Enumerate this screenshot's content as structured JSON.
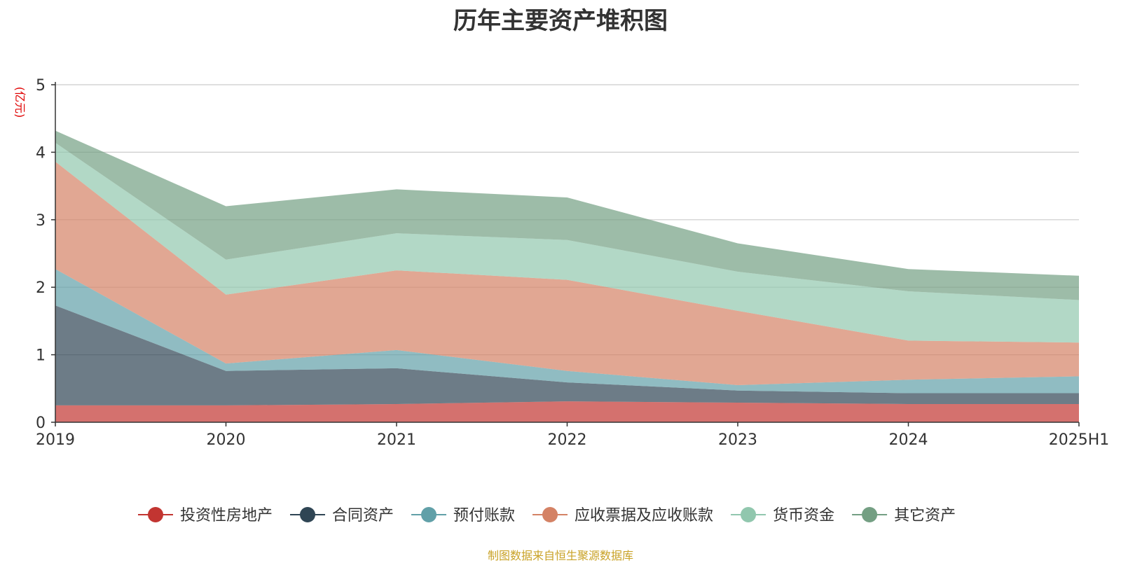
{
  "chart_data": {
    "type": "area",
    "title": "历年主要资产堆积图",
    "ylabel": "(亿元)",
    "ylim": [
      0,
      5
    ],
    "yticks": [
      0,
      1,
      2,
      3,
      4,
      5
    ],
    "categories": [
      "2019",
      "2020",
      "2021",
      "2022",
      "2023",
      "2024",
      "2025H1"
    ],
    "stacked": true,
    "grid": true,
    "legend_position": "bottom",
    "series": [
      {
        "name": "投资性房地产",
        "color": "#c23531",
        "values": [
          0.25,
          0.25,
          0.27,
          0.31,
          0.29,
          0.27,
          0.27
        ]
      },
      {
        "name": "合同资产",
        "color": "#2f4554",
        "values": [
          1.48,
          0.51,
          0.53,
          0.28,
          0.18,
          0.16,
          0.16
        ]
      },
      {
        "name": "预付账款",
        "color": "#61a0a8",
        "values": [
          0.54,
          0.11,
          0.27,
          0.17,
          0.08,
          0.2,
          0.25
        ]
      },
      {
        "name": "应收票据及应收账款",
        "color": "#d48265",
        "values": [
          1.59,
          1.02,
          1.18,
          1.35,
          1.1,
          0.58,
          0.5
        ]
      },
      {
        "name": "货币资金",
        "color": "#91c7ae",
        "values": [
          0.28,
          0.52,
          0.55,
          0.59,
          0.58,
          0.73,
          0.63
        ]
      },
      {
        "name": "其它资产",
        "color": "#749f83",
        "values": [
          0.18,
          0.79,
          0.65,
          0.63,
          0.42,
          0.33,
          0.36
        ]
      }
    ]
  },
  "source_text": "制图数据来自恒生聚源数据库"
}
